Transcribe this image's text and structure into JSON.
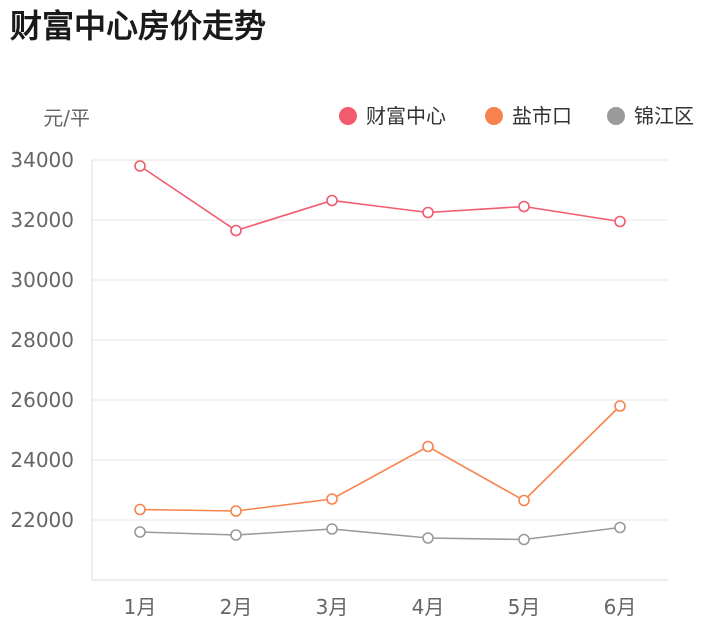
{
  "title": "财富中心房价走势",
  "chart_data": {
    "type": "line",
    "title": "财富中心房价走势",
    "ylabel": "元/平",
    "xlabel": "",
    "categories": [
      "1月",
      "2月",
      "3月",
      "4月",
      "5月",
      "6月"
    ],
    "ylim": [
      20000,
      34000
    ],
    "yticks": [
      22000,
      24000,
      26000,
      28000,
      30000,
      32000,
      34000
    ],
    "grid": true,
    "legend_position": "top-right",
    "series": [
      {
        "name": "财富中心",
        "color": "#f25a6e",
        "values": [
          33800,
          31650,
          32650,
          32250,
          32450,
          31950
        ]
      },
      {
        "name": "盐市口",
        "color": "#f7844f",
        "values": [
          22350,
          22300,
          22700,
          24450,
          22650,
          25800
        ]
      },
      {
        "name": "锦江区",
        "color": "#9a9a9a",
        "values": [
          21600,
          21500,
          21700,
          21400,
          21350,
          21750
        ]
      }
    ]
  }
}
